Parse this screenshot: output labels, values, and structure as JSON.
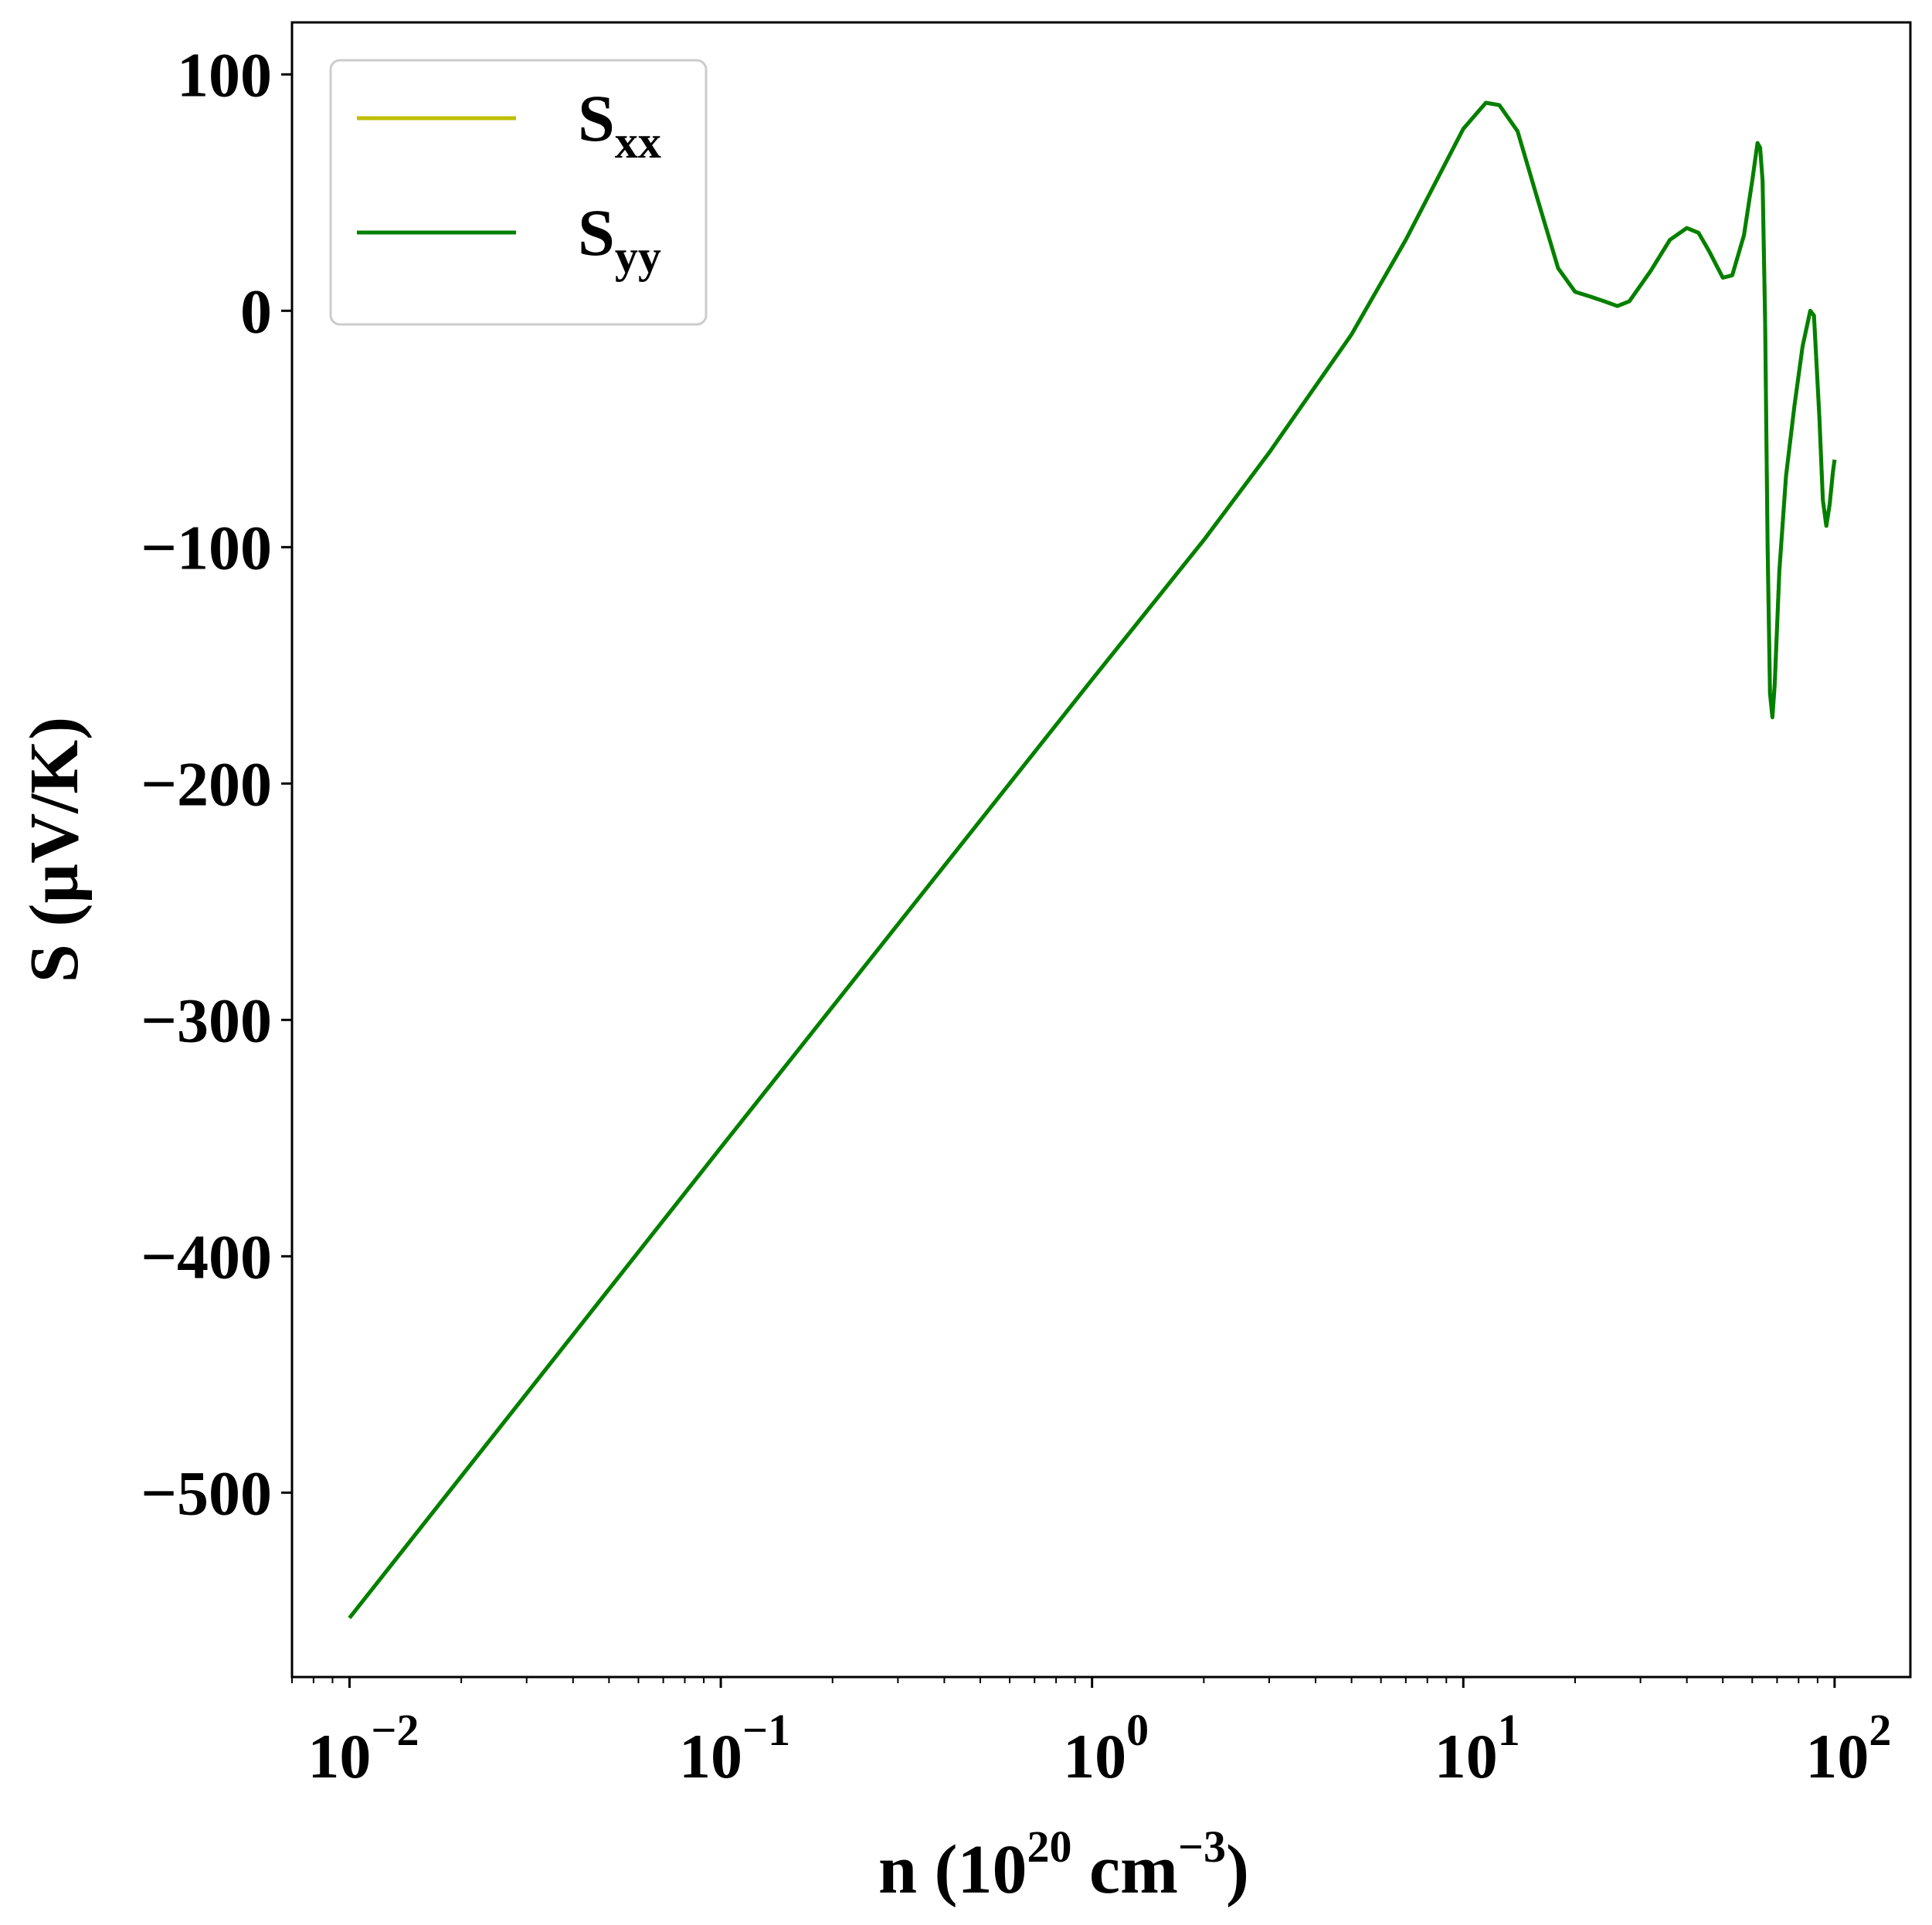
{
  "chart_data": {
    "type": "line",
    "x_scale": "log",
    "xlim": [
      0.007,
      160
    ],
    "ylim": [
      -578,
      122
    ],
    "xlabel": {
      "pre": "n (10",
      "sup1": "20",
      "mid": " cm",
      "sup2": "−3",
      "post": ")"
    },
    "ylabel": "S (µV/K)",
    "x_ticks": [
      {
        "value": 0.01,
        "base": "10",
        "exp": "−2"
      },
      {
        "value": 0.1,
        "base": "10",
        "exp": "−1"
      },
      {
        "value": 1,
        "base": "10",
        "exp": "0"
      },
      {
        "value": 10,
        "base": "10",
        "exp": "1"
      },
      {
        "value": 100,
        "base": "10",
        "exp": "2"
      }
    ],
    "y_ticks": [
      {
        "value": 100,
        "label": "100"
      },
      {
        "value": 0,
        "label": "0"
      },
      {
        "value": -100,
        "label": "−100"
      },
      {
        "value": -200,
        "label": "−200"
      },
      {
        "value": -300,
        "label": "−300"
      },
      {
        "value": -400,
        "label": "−400"
      },
      {
        "value": -500,
        "label": "−500"
      }
    ],
    "grid": false,
    "legend_position": "top-left",
    "series": [
      {
        "name": {
          "base": "S",
          "sub": "xx"
        },
        "color": "#bfbf00",
        "points": [
          [
            0.01,
            -553
          ],
          [
            0.1,
            -354
          ],
          [
            1,
            -156
          ],
          [
            2,
            -97
          ],
          [
            3,
            -60
          ],
          [
            5,
            -10
          ],
          [
            7,
            30
          ],
          [
            10,
            77
          ],
          [
            11.5,
            88
          ],
          [
            12.5,
            87
          ],
          [
            14,
            76
          ],
          [
            16,
            45
          ],
          [
            18,
            18
          ],
          [
            20,
            8
          ],
          [
            22,
            6
          ],
          [
            24,
            4
          ],
          [
            26,
            2
          ],
          [
            28,
            4
          ],
          [
            32,
            17
          ],
          [
            36,
            30
          ],
          [
            40,
            35
          ],
          [
            43,
            33
          ],
          [
            46,
            25
          ],
          [
            50,
            14
          ],
          [
            53,
            15
          ],
          [
            57,
            32
          ],
          [
            60,
            55
          ],
          [
            62,
            71
          ],
          [
            63,
            69
          ],
          [
            64,
            55
          ],
          [
            65,
            -5
          ],
          [
            66,
            -100
          ],
          [
            67,
            -162
          ],
          [
            68,
            -172
          ],
          [
            69,
            -158
          ],
          [
            71,
            -110
          ],
          [
            74,
            -70
          ],
          [
            78,
            -40
          ],
          [
            82,
            -15
          ],
          [
            86,
            0
          ],
          [
            88,
            -2
          ],
          [
            91,
            -45
          ],
          [
            93,
            -80
          ],
          [
            95,
            -91
          ],
          [
            97,
            -82
          ],
          [
            99,
            -68
          ],
          [
            100,
            -63
          ]
        ]
      },
      {
        "name": {
          "base": "S",
          "sub": "yy"
        },
        "color": "#008000",
        "points": [
          [
            0.01,
            -553
          ],
          [
            0.1,
            -354
          ],
          [
            1,
            -156
          ],
          [
            2,
            -97
          ],
          [
            3,
            -60
          ],
          [
            5,
            -10
          ],
          [
            7,
            30
          ],
          [
            10,
            77
          ],
          [
            11.5,
            88
          ],
          [
            12.5,
            87
          ],
          [
            14,
            76
          ],
          [
            16,
            45
          ],
          [
            18,
            18
          ],
          [
            20,
            8
          ],
          [
            22,
            6
          ],
          [
            24,
            4
          ],
          [
            26,
            2
          ],
          [
            28,
            4
          ],
          [
            32,
            17
          ],
          [
            36,
            30
          ],
          [
            40,
            35
          ],
          [
            43,
            33
          ],
          [
            46,
            25
          ],
          [
            50,
            14
          ],
          [
            53,
            15
          ],
          [
            57,
            32
          ],
          [
            60,
            55
          ],
          [
            62,
            71
          ],
          [
            63,
            69
          ],
          [
            64,
            55
          ],
          [
            65,
            -5
          ],
          [
            66,
            -100
          ],
          [
            67,
            -162
          ],
          [
            68,
            -172
          ],
          [
            69,
            -158
          ],
          [
            71,
            -110
          ],
          [
            74,
            -70
          ],
          [
            78,
            -40
          ],
          [
            82,
            -15
          ],
          [
            86,
            0
          ],
          [
            88,
            -2
          ],
          [
            91,
            -45
          ],
          [
            93,
            -80
          ],
          [
            95,
            -91
          ],
          [
            97,
            -82
          ],
          [
            99,
            -68
          ],
          [
            100,
            -63
          ]
        ]
      }
    ]
  }
}
